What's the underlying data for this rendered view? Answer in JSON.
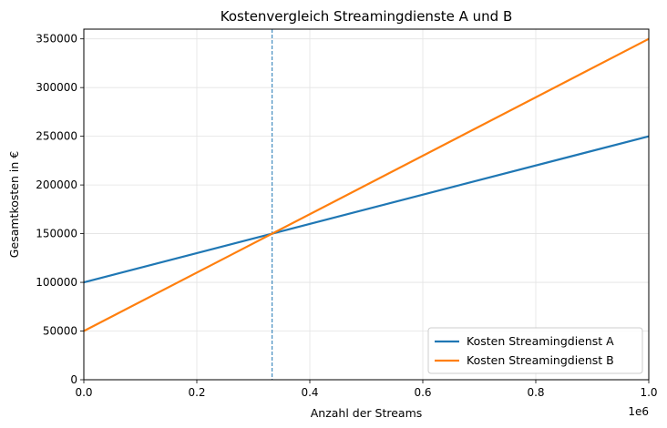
{
  "chart_data": {
    "type": "line",
    "title": "Kostenvergleich Streamingdienste A und B",
    "xlabel": "Anzahl der Streams",
    "ylabel": "Gesamtkosten in €",
    "x_offset_label": "1e6",
    "xlim": [
      0,
      1000000
    ],
    "ylim": [
      0,
      360000
    ],
    "x_ticks": [
      0,
      200000,
      400000,
      600000,
      800000,
      1000000
    ],
    "x_tick_labels": [
      "0.0",
      "0.2",
      "0.4",
      "0.6",
      "0.8",
      "1.0"
    ],
    "y_ticks": [
      0,
      50000,
      100000,
      150000,
      200000,
      250000,
      300000,
      350000
    ],
    "y_tick_labels": [
      "0",
      "50000",
      "100000",
      "150000",
      "200000",
      "250000",
      "300000",
      "350000"
    ],
    "grid": true,
    "legend_position": "lower-right",
    "series": [
      {
        "name": "Kosten Streamingdienst A",
        "color": "#1f77b4",
        "x": [
          0,
          1000000
        ],
        "y": [
          100000,
          250000
        ]
      },
      {
        "name": "Kosten Streamingdienst B",
        "color": "#ff7f0e",
        "x": [
          0,
          1000000
        ],
        "y": [
          50000,
          350000
        ]
      }
    ],
    "vline": {
      "x": 333333,
      "color": "#1f77b4",
      "style": "dashed"
    }
  }
}
